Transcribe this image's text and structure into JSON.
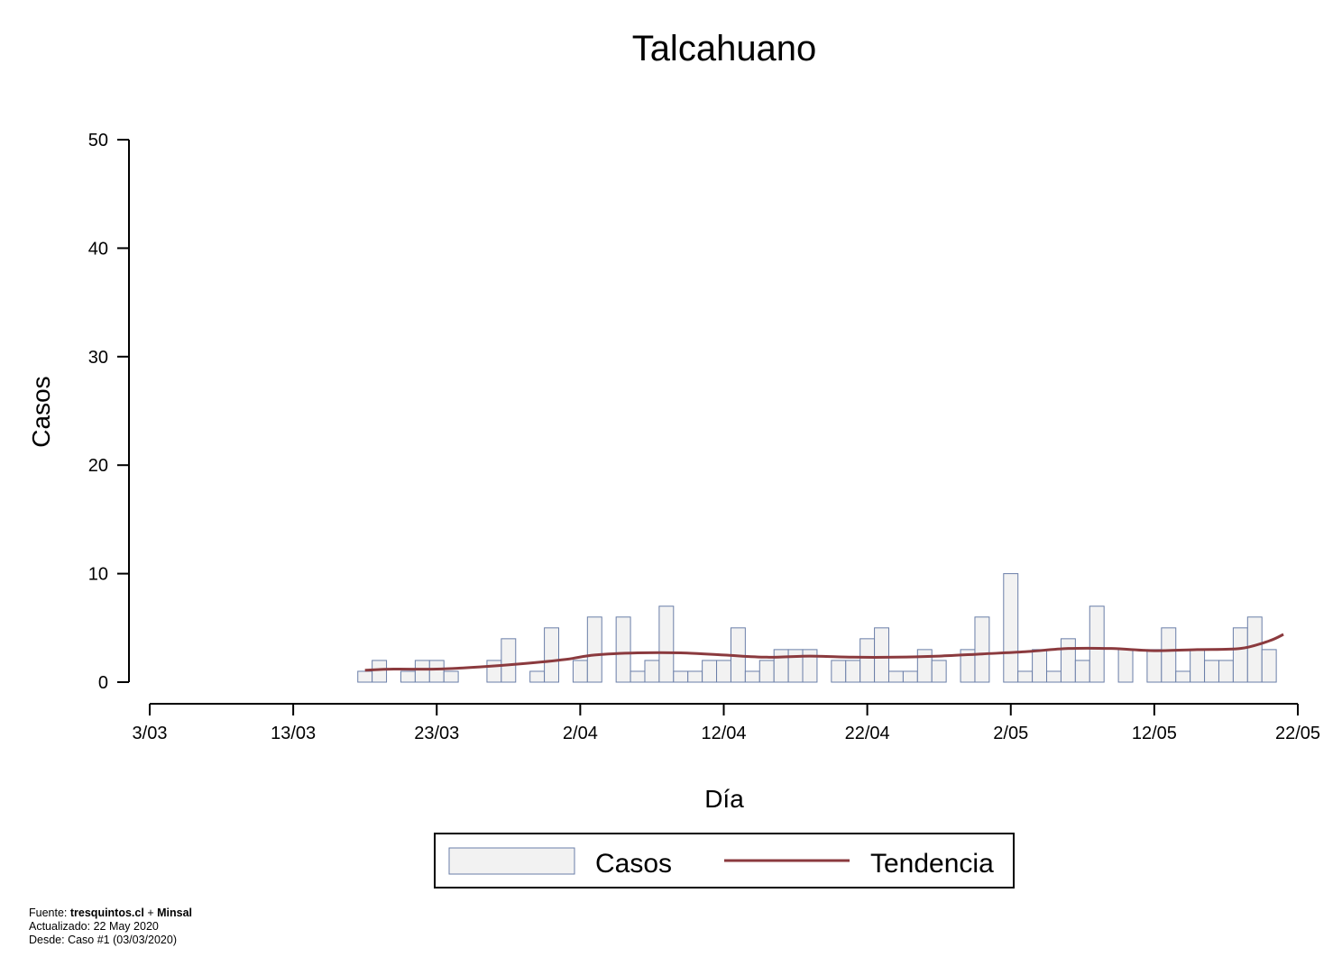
{
  "chart_data": {
    "type": "bar",
    "title": "Talcahuano",
    "xlabel": "Día",
    "ylabel": "Casos",
    "ylim": [
      0,
      50
    ],
    "yticks": [
      0,
      10,
      20,
      30,
      40,
      50
    ],
    "x_start": "3/03",
    "x_end": "22/05",
    "xticks": [
      "3/03",
      "13/03",
      "23/03",
      "2/04",
      "12/04",
      "22/04",
      "2/05",
      "12/05",
      "22/05"
    ],
    "grid": false,
    "legend_position": "bottom",
    "series": [
      {
        "name": "Casos",
        "type": "bar",
        "fill": "#f2f2f2",
        "stroke": "#6a7ea8",
        "x": [
          "18/03",
          "19/03",
          "20/03",
          "21/03",
          "22/03",
          "23/03",
          "24/03",
          "25/03",
          "26/03",
          "27/03",
          "28/03",
          "29/03",
          "30/03",
          "31/03",
          "1/04",
          "2/04",
          "3/04",
          "4/04",
          "5/04",
          "6/04",
          "7/04",
          "8/04",
          "9/04",
          "10/04",
          "11/04",
          "12/04",
          "13/04",
          "14/04",
          "15/04",
          "16/04",
          "17/04",
          "18/04",
          "19/04",
          "20/04",
          "21/04",
          "22/04",
          "23/04",
          "24/04",
          "25/04",
          "26/04",
          "27/04",
          "28/04",
          "29/04",
          "30/04",
          "1/05",
          "2/05",
          "3/05",
          "4/05",
          "5/05",
          "6/05",
          "7/05",
          "8/05",
          "9/05",
          "10/05",
          "11/05",
          "12/05",
          "13/05",
          "14/05",
          "15/05",
          "16/05",
          "17/05",
          "18/05",
          "19/05",
          "20/05",
          "21/05"
        ],
        "values": [
          1,
          2,
          0,
          1,
          2,
          2,
          1,
          0,
          0,
          2,
          4,
          0,
          1,
          5,
          0,
          2,
          6,
          0,
          6,
          1,
          2,
          7,
          1,
          1,
          2,
          2,
          5,
          1,
          2,
          3,
          3,
          3,
          0,
          2,
          2,
          4,
          5,
          1,
          1,
          3,
          2,
          0,
          3,
          6,
          0,
          10,
          1,
          3,
          1,
          4,
          2,
          7,
          0,
          3,
          0,
          3,
          5,
          1,
          3,
          2,
          2,
          5,
          6,
          3,
          0
        ]
      },
      {
        "name": "Tendencia",
        "type": "line",
        "color": "#8b3a3e",
        "x": [
          "18/03",
          "20/03",
          "23/03",
          "26/03",
          "29/03",
          "1/04",
          "3/04",
          "6/04",
          "9/04",
          "12/04",
          "15/04",
          "18/04",
          "21/04",
          "24/04",
          "27/04",
          "30/04",
          "3/05",
          "6/05",
          "9/05",
          "12/05",
          "15/05",
          "18/05",
          "20/05",
          "21/05"
        ],
        "values": [
          1.1,
          1.2,
          1.2,
          1.4,
          1.7,
          2.1,
          2.5,
          2.7,
          2.7,
          2.5,
          2.3,
          2.4,
          2.3,
          2.3,
          2.4,
          2.6,
          2.8,
          3.1,
          3.1,
          2.9,
          3.0,
          3.1,
          3.8,
          4.4
        ]
      }
    ]
  },
  "footer": {
    "source_label": "Fuente: ",
    "source_site": "tresquintos.cl",
    "source_plus": " + ",
    "source_org": "Minsal",
    "updated": "Actualizado: 22 May 2020",
    "since": "Desde: Caso #1  (03/03/2020)"
  }
}
